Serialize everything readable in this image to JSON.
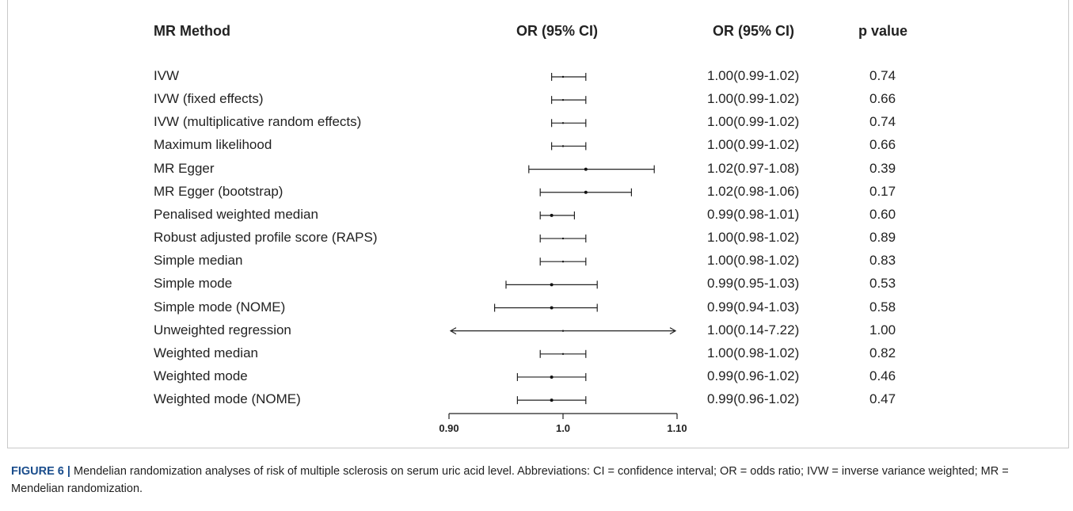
{
  "headers": {
    "method": "MR Method",
    "plot": "OR (95% CI)",
    "or": "OR (95% CI)",
    "p": "p value"
  },
  "chart_data": {
    "type": "forest",
    "xlim": [
      0.9,
      1.1
    ],
    "reference_line": 1.0,
    "xticks": [
      "0.90",
      "1.0",
      "1.10"
    ],
    "rows": [
      {
        "method": "IVW",
        "or": 1.0,
        "lo": 0.99,
        "hi": 1.02,
        "or_text": "1.00(0.99-1.02)",
        "p": "0.74"
      },
      {
        "method": "IVW (fixed effects)",
        "or": 1.0,
        "lo": 0.99,
        "hi": 1.02,
        "or_text": "1.00(0.99-1.02)",
        "p": "0.66"
      },
      {
        "method": "IVW (multiplicative random effects)",
        "or": 1.0,
        "lo": 0.99,
        "hi": 1.02,
        "or_text": "1.00(0.99-1.02)",
        "p": "0.74"
      },
      {
        "method": "Maximum likelihood",
        "or": 1.0,
        "lo": 0.99,
        "hi": 1.02,
        "or_text": "1.00(0.99-1.02)",
        "p": "0.66"
      },
      {
        "method": "MR Egger",
        "or": 1.02,
        "lo": 0.97,
        "hi": 1.08,
        "or_text": "1.02(0.97-1.08)",
        "p": "0.39"
      },
      {
        "method": "MR Egger (bootstrap)",
        "or": 1.02,
        "lo": 0.98,
        "hi": 1.06,
        "or_text": "1.02(0.98-1.06)",
        "p": "0.17"
      },
      {
        "method": "Penalised weighted median",
        "or": 0.99,
        "lo": 0.98,
        "hi": 1.01,
        "or_text": "0.99(0.98-1.01)",
        "p": "0.60"
      },
      {
        "method": "Robust adjusted profile score (RAPS)",
        "or": 1.0,
        "lo": 0.98,
        "hi": 1.02,
        "or_text": "1.00(0.98-1.02)",
        "p": "0.89"
      },
      {
        "method": "Simple median",
        "or": 1.0,
        "lo": 0.98,
        "hi": 1.02,
        "or_text": "1.00(0.98-1.02)",
        "p": "0.83"
      },
      {
        "method": "Simple mode",
        "or": 0.99,
        "lo": 0.95,
        "hi": 1.03,
        "or_text": "0.99(0.95-1.03)",
        "p": "0.53"
      },
      {
        "method": "Simple mode (NOME)",
        "or": 0.99,
        "lo": 0.94,
        "hi": 1.03,
        "or_text": "0.99(0.94-1.03)",
        "p": "0.58"
      },
      {
        "method": "Unweighted regression",
        "or": 1.0,
        "lo": 0.14,
        "hi": 7.22,
        "or_text": "1.00(0.14-7.22)",
        "p": "1.00",
        "arrows": true
      },
      {
        "method": "Weighted median",
        "or": 1.0,
        "lo": 0.98,
        "hi": 1.02,
        "or_text": "1.00(0.98-1.02)",
        "p": "0.82"
      },
      {
        "method": "Weighted mode",
        "or": 0.99,
        "lo": 0.96,
        "hi": 1.02,
        "or_text": "0.99(0.96-1.02)",
        "p": "0.46"
      },
      {
        "method": "Weighted mode (NOME)",
        "or": 0.99,
        "lo": 0.96,
        "hi": 1.02,
        "or_text": "0.99(0.96-1.02)",
        "p": "0.47"
      }
    ]
  },
  "caption": {
    "label": "FIGURE 6 |",
    "text": " Mendelian randomization analyses of risk of multiple sclerosis on serum uric acid level. Abbreviations: CI = confidence interval; OR = odds ratio; IVW = inverse variance weighted; MR = Mendelian randomization."
  }
}
